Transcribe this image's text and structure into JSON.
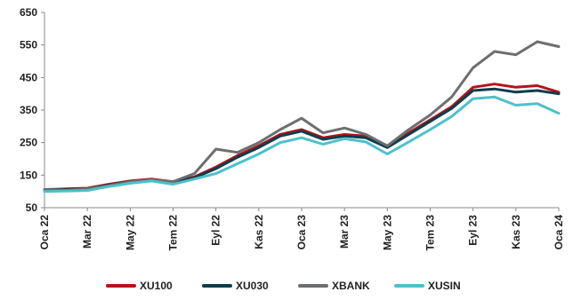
{
  "chart_data": {
    "type": "line",
    "title": "",
    "xlabel": "",
    "ylabel": "",
    "ylim": [
      50,
      650
    ],
    "y_ticks": [
      50,
      150,
      250,
      350,
      450,
      550,
      650
    ],
    "x_ticks": [
      "Oca 22",
      "Mar 22",
      "May 22",
      "Tem 22",
      "Eyl 22",
      "Kas 22",
      "Oca 23",
      "Mar 23",
      "May 23",
      "Tem 23",
      "Eyl 23",
      "Kas 23",
      "Oca 24"
    ],
    "x": [
      "Oca 22",
      "Şub 22",
      "Mar 22",
      "Nis 22",
      "May 22",
      "Haz 22",
      "Tem 22",
      "Ağu 22",
      "Eyl 22",
      "Eki 22",
      "Kas 22",
      "Ara 22",
      "Oca 23",
      "Şub 23",
      "Mar 23",
      "Nis 23",
      "May 23",
      "Haz 23",
      "Tem 23",
      "Ağu 23",
      "Eyl 23",
      "Eki 23",
      "Kas 23",
      "Ara 23",
      "Oca 24"
    ],
    "grid": false,
    "legend_position": "bottom",
    "series": [
      {
        "name": "XU100",
        "color": "#b5121b",
        "values": [
          105,
          108,
          110,
          122,
          132,
          138,
          130,
          145,
          175,
          210,
          240,
          275,
          290,
          265,
          275,
          270,
          240,
          280,
          320,
          360,
          420,
          430,
          420,
          425,
          405
        ]
      },
      {
        "name": "XU030",
        "color": "#0b3d4a",
        "values": [
          105,
          106,
          108,
          120,
          130,
          136,
          128,
          142,
          170,
          205,
          235,
          270,
          285,
          260,
          270,
          265,
          235,
          275,
          315,
          355,
          410,
          415,
          405,
          410,
          400
        ]
      },
      {
        "name": "XBANK",
        "color": "#6d6e70",
        "values": [
          105,
          104,
          108,
          118,
          130,
          136,
          130,
          155,
          230,
          220,
          250,
          290,
          325,
          280,
          295,
          275,
          240,
          290,
          335,
          390,
          480,
          530,
          520,
          560,
          545
        ]
      },
      {
        "name": "XUSIN",
        "color": "#4dc1c9",
        "values": [
          100,
          101,
          103,
          115,
          125,
          132,
          122,
          138,
          155,
          185,
          215,
          250,
          265,
          245,
          262,
          252,
          215,
          252,
          290,
          330,
          385,
          390,
          365,
          370,
          340
        ]
      }
    ]
  }
}
